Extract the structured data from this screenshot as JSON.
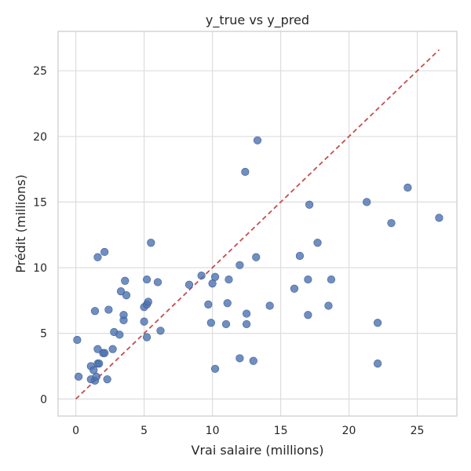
{
  "chart_data": {
    "type": "scatter",
    "title": "y_true vs y_pred",
    "xlabel": "Vrai salaire (millions)",
    "ylabel": "Prédit (millions)",
    "xlim": [
      -1.3,
      27.9
    ],
    "ylim": [
      -1.3,
      28.0
    ],
    "xticks": [
      0,
      5,
      10,
      15,
      20,
      25
    ],
    "yticks": [
      0,
      5,
      10,
      15,
      20,
      25
    ],
    "grid": true,
    "colors": {
      "points": "#4C72B0",
      "diagonal": "#C44E52",
      "grid": "#DDDDDD",
      "frame": "#CCCCCC",
      "text": "#262626"
    },
    "reference_line": {
      "x": [
        0,
        26.6
      ],
      "y": [
        0,
        26.6
      ],
      "style": "dashed"
    },
    "series": [
      {
        "points": [
          [
            0.1,
            4.5
          ],
          [
            0.2,
            1.7
          ],
          [
            1.1,
            2.5
          ],
          [
            1.1,
            1.5
          ],
          [
            1.3,
            2.2
          ],
          [
            1.4,
            1.4
          ],
          [
            1.5,
            1.7
          ],
          [
            1.4,
            6.7
          ],
          [
            1.6,
            3.8
          ],
          [
            1.6,
            2.7
          ],
          [
            1.7,
            2.7
          ],
          [
            1.6,
            10.8
          ],
          [
            2.0,
            3.5
          ],
          [
            2.1,
            3.5
          ],
          [
            2.1,
            11.2
          ],
          [
            2.3,
            1.5
          ],
          [
            2.4,
            6.8
          ],
          [
            2.7,
            3.8
          ],
          [
            2.8,
            5.1
          ],
          [
            3.2,
            4.9
          ],
          [
            3.3,
            8.2
          ],
          [
            3.5,
            6.0
          ],
          [
            3.5,
            6.4
          ],
          [
            3.6,
            9.0
          ],
          [
            3.7,
            7.9
          ],
          [
            5.0,
            5.9
          ],
          [
            5.0,
            7.0
          ],
          [
            5.2,
            7.2
          ],
          [
            5.2,
            9.1
          ],
          [
            5.2,
            4.7
          ],
          [
            5.3,
            7.4
          ],
          [
            5.5,
            11.9
          ],
          [
            6.0,
            8.9
          ],
          [
            6.2,
            5.2
          ],
          [
            8.3,
            8.7
          ],
          [
            9.2,
            9.4
          ],
          [
            9.7,
            7.2
          ],
          [
            9.9,
            5.8
          ],
          [
            10.0,
            8.8
          ],
          [
            10.2,
            9.3
          ],
          [
            10.2,
            2.3
          ],
          [
            11.0,
            5.7
          ],
          [
            11.1,
            7.3
          ],
          [
            11.2,
            9.1
          ],
          [
            12.0,
            10.2
          ],
          [
            12.0,
            3.1
          ],
          [
            12.4,
            17.3
          ],
          [
            12.5,
            6.5
          ],
          [
            12.5,
            5.7
          ],
          [
            13.0,
            2.9
          ],
          [
            13.2,
            10.8
          ],
          [
            13.3,
            19.7
          ],
          [
            14.2,
            7.1
          ],
          [
            16.0,
            8.4
          ],
          [
            16.4,
            10.9
          ],
          [
            17.0,
            9.1
          ],
          [
            17.0,
            6.4
          ],
          [
            17.1,
            14.8
          ],
          [
            17.7,
            11.9
          ],
          [
            18.5,
            7.1
          ],
          [
            18.7,
            9.1
          ],
          [
            21.3,
            15.0
          ],
          [
            22.1,
            5.8
          ],
          [
            22.1,
            2.7
          ],
          [
            23.1,
            13.4
          ],
          [
            24.3,
            16.1
          ],
          [
            26.6,
            13.8
          ]
        ]
      }
    ]
  }
}
